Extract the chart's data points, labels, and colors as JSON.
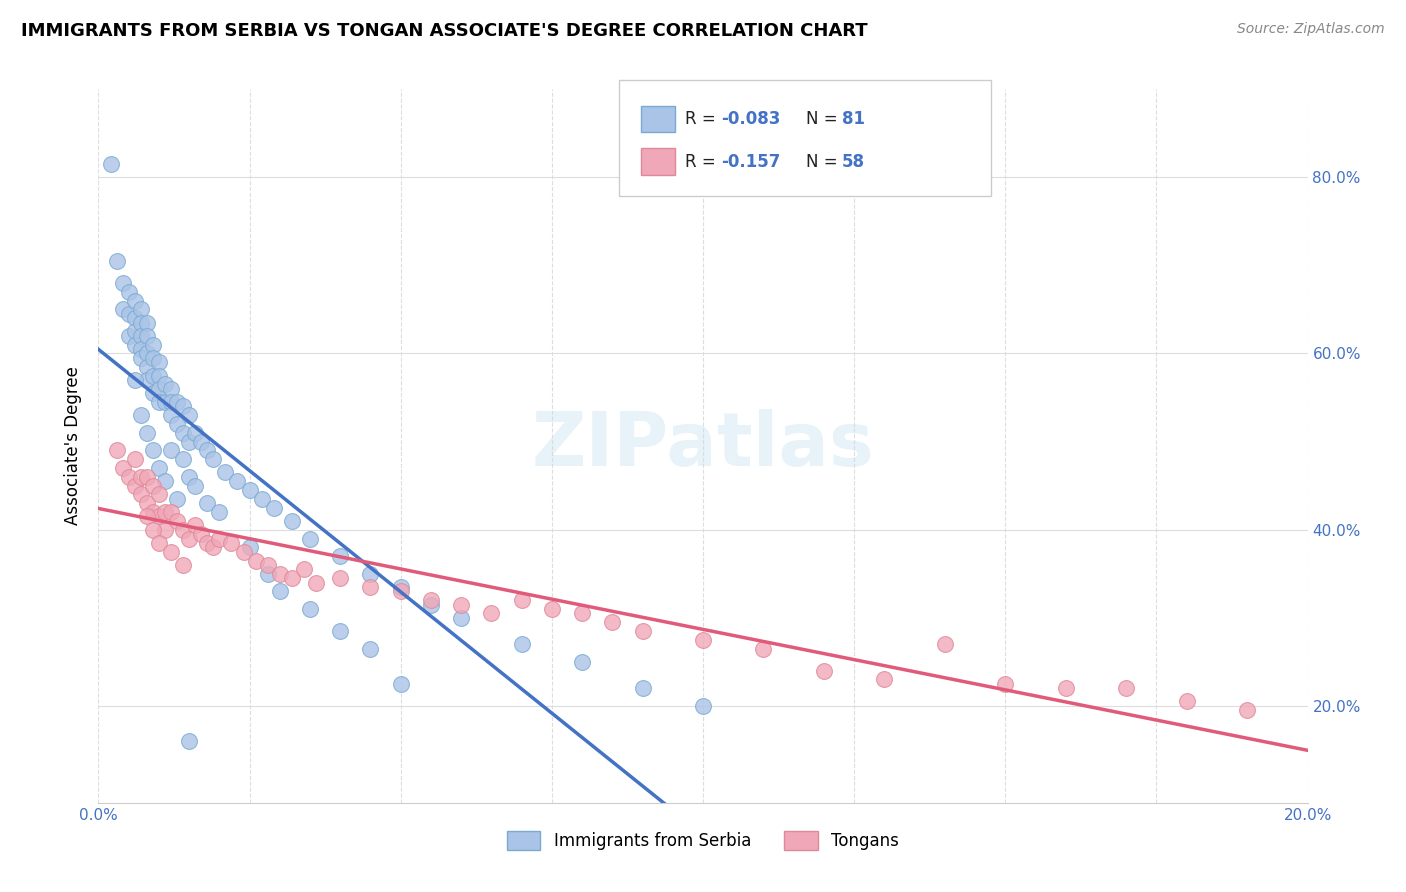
{
  "title": "IMMIGRANTS FROM SERBIA VS TONGAN ASSOCIATE'S DEGREE CORRELATION CHART",
  "source": "Source: ZipAtlas.com",
  "ylabel": "Associate's Degree",
  "y_ticks": [
    0.2,
    0.4,
    0.6,
    0.8
  ],
  "y_tick_labels": [
    "20.0%",
    "40.0%",
    "60.0%",
    "80.0%"
  ],
  "line1_color": "#4472c4",
  "line2_color": "#e05a7a",
  "scatter_serbia_color": "#aac4e8",
  "scatter_tongan_color": "#f0a8b8",
  "scatter_serbia_edge": "#7aaad0",
  "scatter_tongan_edge": "#e08898",
  "serbia_points_x": [
    0.002,
    0.003,
    0.004,
    0.004,
    0.005,
    0.005,
    0.005,
    0.006,
    0.006,
    0.006,
    0.006,
    0.007,
    0.007,
    0.007,
    0.007,
    0.007,
    0.008,
    0.008,
    0.008,
    0.008,
    0.008,
    0.009,
    0.009,
    0.009,
    0.009,
    0.01,
    0.01,
    0.01,
    0.01,
    0.011,
    0.011,
    0.012,
    0.012,
    0.012,
    0.013,
    0.013,
    0.014,
    0.014,
    0.015,
    0.015,
    0.016,
    0.017,
    0.018,
    0.019,
    0.021,
    0.023,
    0.025,
    0.027,
    0.029,
    0.032,
    0.035,
    0.04,
    0.045,
    0.05,
    0.055,
    0.06,
    0.07,
    0.08,
    0.09,
    0.1,
    0.012,
    0.014,
    0.015,
    0.016,
    0.018,
    0.02,
    0.025,
    0.028,
    0.03,
    0.035,
    0.04,
    0.045,
    0.05,
    0.006,
    0.007,
    0.008,
    0.009,
    0.01,
    0.011,
    0.013,
    0.015
  ],
  "serbia_points_y": [
    0.815,
    0.705,
    0.68,
    0.65,
    0.67,
    0.645,
    0.62,
    0.66,
    0.64,
    0.625,
    0.61,
    0.65,
    0.635,
    0.62,
    0.605,
    0.595,
    0.635,
    0.62,
    0.6,
    0.585,
    0.57,
    0.61,
    0.595,
    0.575,
    0.555,
    0.59,
    0.575,
    0.56,
    0.545,
    0.565,
    0.545,
    0.56,
    0.545,
    0.53,
    0.545,
    0.52,
    0.54,
    0.51,
    0.53,
    0.5,
    0.51,
    0.5,
    0.49,
    0.48,
    0.465,
    0.455,
    0.445,
    0.435,
    0.425,
    0.41,
    0.39,
    0.37,
    0.35,
    0.335,
    0.315,
    0.3,
    0.27,
    0.25,
    0.22,
    0.2,
    0.49,
    0.48,
    0.46,
    0.45,
    0.43,
    0.42,
    0.38,
    0.35,
    0.33,
    0.31,
    0.285,
    0.265,
    0.225,
    0.57,
    0.53,
    0.51,
    0.49,
    0.47,
    0.455,
    0.435,
    0.16
  ],
  "tongan_points_x": [
    0.003,
    0.004,
    0.005,
    0.006,
    0.006,
    0.007,
    0.007,
    0.008,
    0.008,
    0.009,
    0.009,
    0.01,
    0.01,
    0.011,
    0.011,
    0.012,
    0.013,
    0.014,
    0.015,
    0.016,
    0.017,
    0.018,
    0.019,
    0.02,
    0.022,
    0.024,
    0.026,
    0.028,
    0.03,
    0.032,
    0.034,
    0.036,
    0.04,
    0.045,
    0.05,
    0.055,
    0.06,
    0.065,
    0.07,
    0.075,
    0.08,
    0.085,
    0.09,
    0.1,
    0.11,
    0.12,
    0.13,
    0.14,
    0.15,
    0.16,
    0.17,
    0.18,
    0.19,
    0.008,
    0.009,
    0.01,
    0.012,
    0.014
  ],
  "tongan_points_y": [
    0.49,
    0.47,
    0.46,
    0.48,
    0.45,
    0.46,
    0.44,
    0.46,
    0.43,
    0.45,
    0.42,
    0.44,
    0.415,
    0.42,
    0.4,
    0.42,
    0.41,
    0.4,
    0.39,
    0.405,
    0.395,
    0.385,
    0.38,
    0.39,
    0.385,
    0.375,
    0.365,
    0.36,
    0.35,
    0.345,
    0.355,
    0.34,
    0.345,
    0.335,
    0.33,
    0.32,
    0.315,
    0.305,
    0.32,
    0.31,
    0.305,
    0.295,
    0.285,
    0.275,
    0.265,
    0.24,
    0.23,
    0.27,
    0.225,
    0.22,
    0.22,
    0.205,
    0.195,
    0.415,
    0.4,
    0.385,
    0.375,
    0.36
  ],
  "xlim": [
    0.0,
    0.2
  ],
  "ylim": [
    0.09,
    0.9
  ],
  "line1_x_solid_end": 0.1,
  "figsize": [
    14.06,
    8.92
  ],
  "dpi": 100
}
